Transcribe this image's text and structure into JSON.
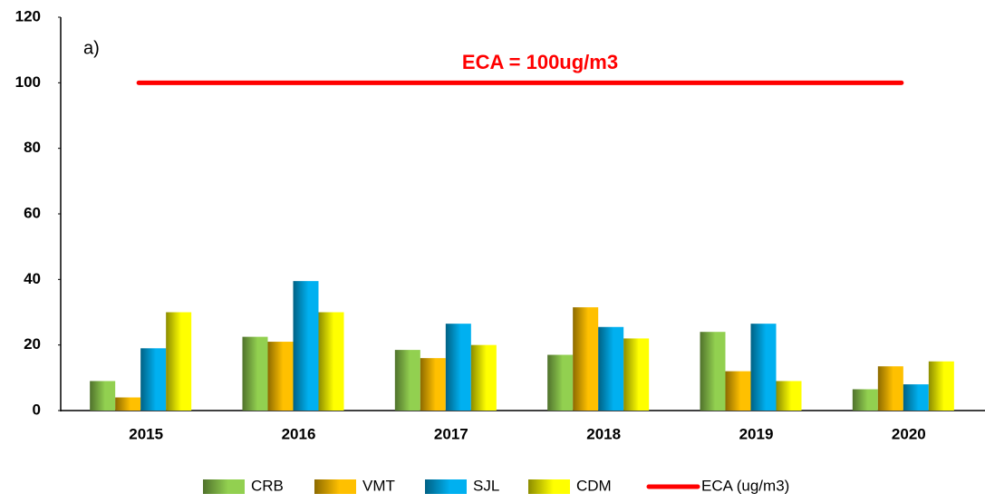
{
  "chart_data": {
    "type": "bar",
    "panel_label": "a)",
    "annotation": "ECA = 100ug/m3",
    "categories": [
      "2015",
      "2016",
      "2017",
      "2018",
      "2019",
      "2020"
    ],
    "series": [
      {
        "name": "CRB",
        "color": "#92d050",
        "values": [
          9,
          22.5,
          18.5,
          17,
          24,
          6.5
        ]
      },
      {
        "name": "VMT",
        "color": "#ffc000",
        "values": [
          4,
          21,
          16,
          31.5,
          12,
          13.5
        ]
      },
      {
        "name": "SJL",
        "color": "#00b0f0",
        "values": [
          19,
          39.5,
          26.5,
          25.5,
          26.5,
          8
        ]
      },
      {
        "name": "CDM",
        "color": "#ffff00",
        "values": [
          30,
          30,
          20,
          22,
          9,
          15
        ]
      },
      {
        "name": "ECA (ug/m3)",
        "color": "#ff0000",
        "type": "line",
        "values": [
          100,
          100,
          100,
          100,
          100,
          100
        ]
      }
    ],
    "ylim": [
      0,
      120
    ],
    "yticks": [
      0,
      20,
      40,
      60,
      80,
      100,
      120
    ],
    "grid": false,
    "legend": "bottom"
  }
}
